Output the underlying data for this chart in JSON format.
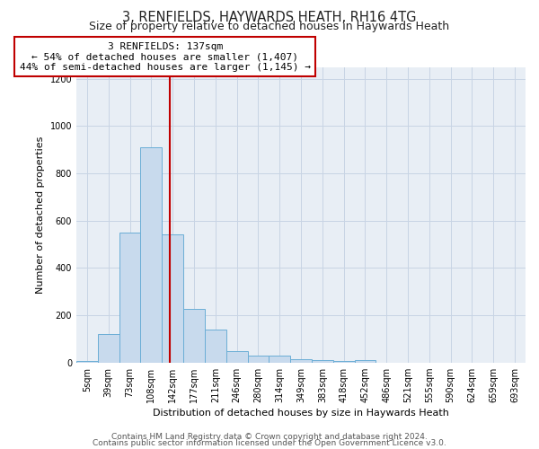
{
  "title": "3, RENFIELDS, HAYWARDS HEATH, RH16 4TG",
  "subtitle": "Size of property relative to detached houses in Haywards Heath",
  "xlabel": "Distribution of detached houses by size in Haywards Heath",
  "ylabel": "Number of detached properties",
  "bar_labels": [
    "5sqm",
    "39sqm",
    "73sqm",
    "108sqm",
    "142sqm",
    "177sqm",
    "211sqm",
    "246sqm",
    "280sqm",
    "314sqm",
    "349sqm",
    "383sqm",
    "418sqm",
    "452sqm",
    "486sqm",
    "521sqm",
    "555sqm",
    "590sqm",
    "624sqm",
    "659sqm",
    "693sqm"
  ],
  "bar_values": [
    5,
    120,
    550,
    910,
    540,
    225,
    140,
    50,
    30,
    30,
    15,
    10,
    5,
    10,
    0,
    0,
    0,
    0,
    0,
    0,
    0
  ],
  "bar_color": "#c8daed",
  "bar_edge_color": "#6baed6",
  "vline_color": "#c00000",
  "annotation_line1": "3 RENFIELDS: 137sqm",
  "annotation_line2": "← 54% of detached houses are smaller (1,407)",
  "annotation_line3": "44% of semi-detached houses are larger (1,145) →",
  "annotation_box_color": "#ffffff",
  "annotation_box_edge": "#c00000",
  "ylim": [
    0,
    1250
  ],
  "yticks": [
    0,
    200,
    400,
    600,
    800,
    1000,
    1200
  ],
  "axes_bg_color": "#e8eef5",
  "background_color": "#ffffff",
  "grid_color": "#c8d4e4",
  "footer_line1": "Contains HM Land Registry data © Crown copyright and database right 2024.",
  "footer_line2": "Contains public sector information licensed under the Open Government Licence v3.0.",
  "title_fontsize": 10.5,
  "subtitle_fontsize": 9,
  "axis_label_fontsize": 8,
  "tick_fontsize": 7,
  "annotation_fontsize": 8,
  "footer_fontsize": 6.5
}
